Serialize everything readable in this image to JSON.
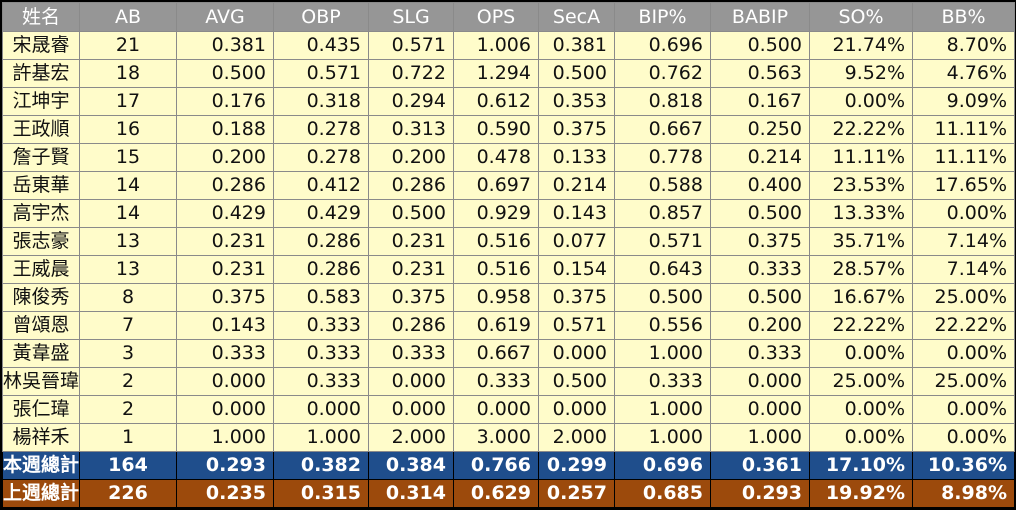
{
  "headers": [
    "姓名",
    "AB",
    "AVG",
    "OBP",
    "SLG",
    "OPS",
    "SecA",
    "BIP%",
    "BABIP",
    "SO%",
    "BB%"
  ],
  "rows": [
    [
      "宋晟睿",
      "21",
      "0.381",
      "0.435",
      "0.571",
      "1.006",
      "0.381",
      "0.696",
      "0.500",
      "21.74%",
      "8.70%"
    ],
    [
      "許基宏",
      "18",
      "0.500",
      "0.571",
      "0.722",
      "1.294",
      "0.500",
      "0.762",
      "0.563",
      "9.52%",
      "4.76%"
    ],
    [
      "江坤宇",
      "17",
      "0.176",
      "0.318",
      "0.294",
      "0.612",
      "0.353",
      "0.818",
      "0.167",
      "0.00%",
      "9.09%"
    ],
    [
      "王政順",
      "16",
      "0.188",
      "0.278",
      "0.313",
      "0.590",
      "0.375",
      "0.667",
      "0.250",
      "22.22%",
      "11.11%"
    ],
    [
      "詹子賢",
      "15",
      "0.200",
      "0.278",
      "0.200",
      "0.478",
      "0.133",
      "0.778",
      "0.214",
      "11.11%",
      "11.11%"
    ],
    [
      "岳東華",
      "14",
      "0.286",
      "0.412",
      "0.286",
      "0.697",
      "0.214",
      "0.588",
      "0.400",
      "23.53%",
      "17.65%"
    ],
    [
      "高宇杰",
      "14",
      "0.429",
      "0.429",
      "0.500",
      "0.929",
      "0.143",
      "0.857",
      "0.500",
      "13.33%",
      "0.00%"
    ],
    [
      "張志豪",
      "13",
      "0.231",
      "0.286",
      "0.231",
      "0.516",
      "0.077",
      "0.571",
      "0.375",
      "35.71%",
      "7.14%"
    ],
    [
      "王威晨",
      "13",
      "0.231",
      "0.286",
      "0.231",
      "0.516",
      "0.154",
      "0.643",
      "0.333",
      "28.57%",
      "7.14%"
    ],
    [
      "陳俊秀",
      "8",
      "0.375",
      "0.583",
      "0.375",
      "0.958",
      "0.375",
      "0.500",
      "0.500",
      "16.67%",
      "25.00%"
    ],
    [
      "曾頌恩",
      "7",
      "0.143",
      "0.333",
      "0.286",
      "0.619",
      "0.571",
      "0.556",
      "0.200",
      "22.22%",
      "22.22%"
    ],
    [
      "黃韋盛",
      "3",
      "0.333",
      "0.333",
      "0.333",
      "0.667",
      "0.000",
      "1.000",
      "0.333",
      "0.00%",
      "0.00%"
    ],
    [
      "林吳晉瑋",
      "2",
      "0.000",
      "0.333",
      "0.000",
      "0.333",
      "0.500",
      "0.333",
      "0.000",
      "25.00%",
      "25.00%"
    ],
    [
      "張仁瑋",
      "2",
      "0.000",
      "0.000",
      "0.000",
      "0.000",
      "0.000",
      "1.000",
      "0.000",
      "0.00%",
      "0.00%"
    ],
    [
      "楊祥禾",
      "1",
      "1.000",
      "1.000",
      "2.000",
      "3.000",
      "2.000",
      "1.000",
      "1.000",
      "0.00%",
      "0.00%"
    ]
  ],
  "totals": {
    "this_week": [
      "本週總計",
      "164",
      "0.293",
      "0.382",
      "0.384",
      "0.766",
      "0.299",
      "0.696",
      "0.361",
      "17.10%",
      "10.36%"
    ],
    "last_week": [
      "上週總計",
      "226",
      "0.235",
      "0.315",
      "0.314",
      "0.629",
      "0.257",
      "0.685",
      "0.293",
      "19.92%",
      "8.98%"
    ]
  },
  "colors": {
    "header_bg": "#969696",
    "row_bg": "#fffcca",
    "this_week_bg": "#1f4e8c",
    "last_week_bg": "#9c4a0c"
  }
}
